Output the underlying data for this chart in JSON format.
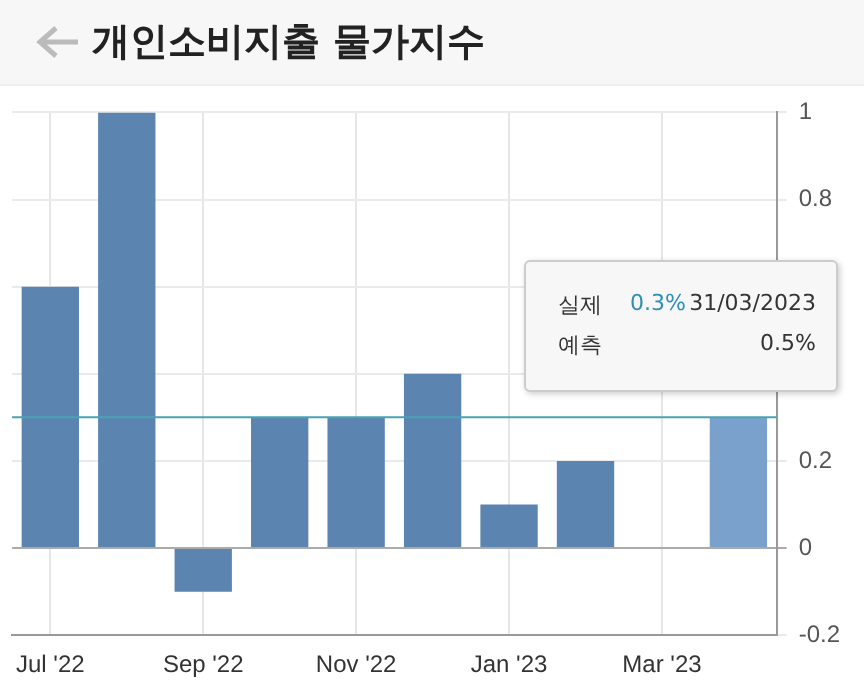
{
  "chart_data": {
    "type": "bar",
    "title": "개인소비지출 물가지수",
    "categories": [
      "Jul '22",
      null,
      "Sep '22",
      null,
      "Nov '22",
      null,
      "Jan '23",
      null,
      "Mar '23",
      null
    ],
    "values": [
      0.6,
      1.0,
      -0.1,
      0.3,
      0.3,
      0.4,
      0.1,
      0.2,
      null,
      0.3
    ],
    "colors": [
      "#5b84b1",
      "#5b84b1",
      "#5b84b1",
      "#5b84b1",
      "#5b84b1",
      "#5b84b1",
      "#5b84b1",
      "#5b84b1",
      "#5b84b1",
      "#7aa0cc"
    ],
    "ylim": [
      -0.2,
      1
    ],
    "yticks": [
      -0.2,
      0,
      0.2,
      {
        "value": 0.4,
        "label": null
      },
      {
        "value": 0.6,
        "label": null
      },
      0.8,
      1
    ],
    "ref_lines": [
      {
        "axis": "y",
        "value": 0.3,
        "color": "#4aa3b5"
      }
    ],
    "annotations": [
      "실제",
      "0.3%",
      "31/03/2023",
      "예측",
      "0.5%"
    ],
    "grid": true,
    "legend": false
  }
}
